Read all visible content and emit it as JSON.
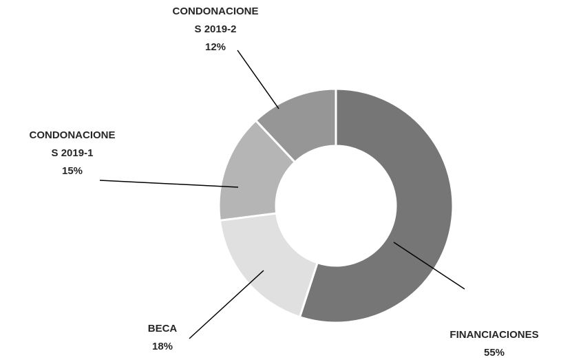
{
  "chart_data": {
    "type": "donut",
    "categories": [
      "FINANCIACIONES",
      "BECA",
      "CONDONACIONES 2019-1",
      "CONDONACIONES 2019-2"
    ],
    "values": [
      55,
      18,
      15,
      12
    ],
    "value_labels": [
      "55%",
      "18%",
      "15%",
      "12%"
    ],
    "colors": [
      "#767676",
      "#e0e0e0",
      "#b5b5b5",
      "#969696"
    ]
  }
}
